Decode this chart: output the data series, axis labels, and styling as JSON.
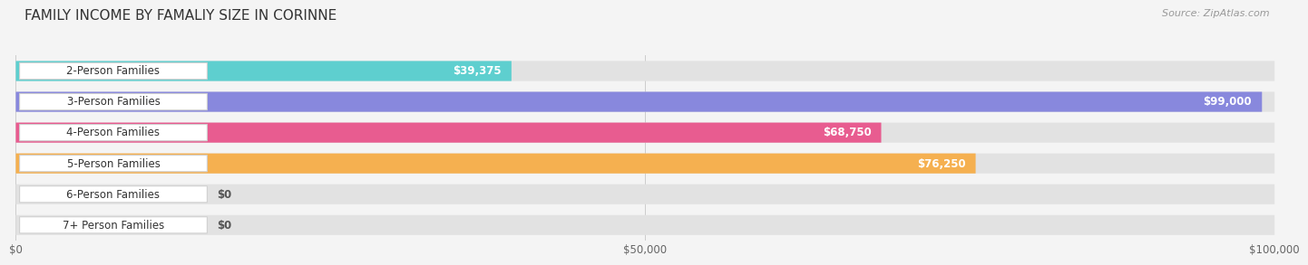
{
  "title": "FAMILY INCOME BY FAMALIY SIZE IN CORINNE",
  "source": "Source: ZipAtlas.com",
  "categories": [
    "2-Person Families",
    "3-Person Families",
    "4-Person Families",
    "5-Person Families",
    "6-Person Families",
    "7+ Person Families"
  ],
  "values": [
    39375,
    99000,
    68750,
    76250,
    0,
    0
  ],
  "bar_colors": [
    "#5ecfcf",
    "#8888dd",
    "#e85c90",
    "#f5b050",
    "#e89898",
    "#90b8e0"
  ],
  "bg_color": "#f4f4f4",
  "xmax": 100000,
  "xtick_labels": [
    "$0",
    "$50,000",
    "$100,000"
  ],
  "value_labels": [
    "$39,375",
    "$99,000",
    "$68,750",
    "$76,250",
    "$0",
    "$0"
  ],
  "title_fontsize": 11,
  "source_fontsize": 8,
  "label_fontsize": 8.5,
  "value_fontsize": 8.5
}
